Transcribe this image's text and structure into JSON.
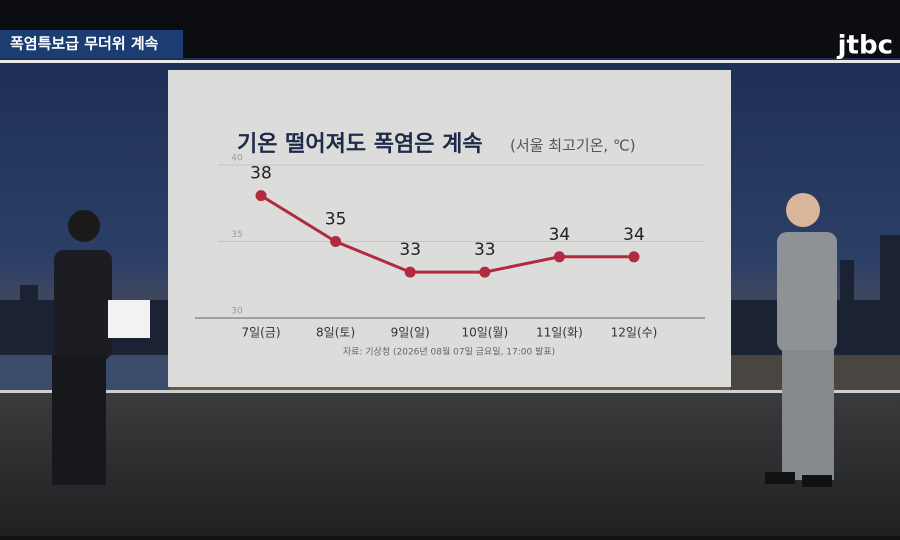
{
  "banner": "폭염특보급 무더위 계속",
  "logo": "jtbc",
  "chart_data": {
    "type": "line",
    "title": "기온 떨어져도 폭염은 계속",
    "subtitle": "(서울 최고기온, ℃)",
    "categories": [
      "7일(금)",
      "8일(토)",
      "9일(일)",
      "10일(월)",
      "11일(화)",
      "12일(수)"
    ],
    "values": [
      38,
      35,
      33,
      33,
      34,
      34
    ],
    "color": "#b22a40",
    "ylim": [
      30,
      40
    ],
    "yticks": [
      30,
      35,
      40
    ],
    "grid": true,
    "source": "자료: 기상청 (2026년 08월 07일 금요일, 17:00 발표)"
  }
}
